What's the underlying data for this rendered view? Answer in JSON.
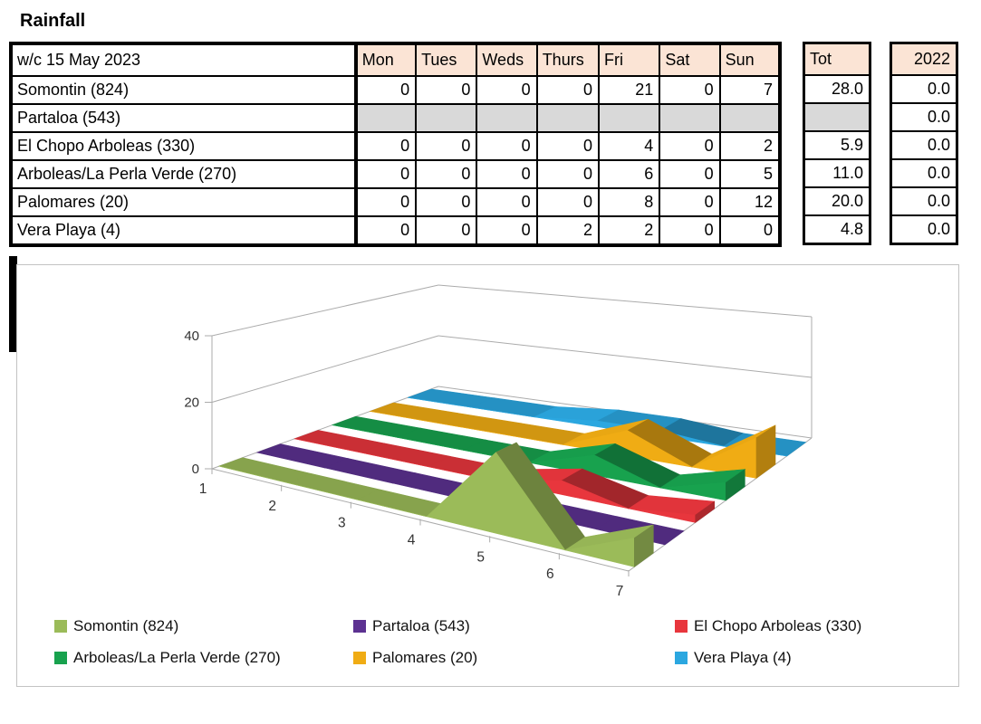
{
  "title": "Rainfall",
  "table": {
    "corner_label": "w/c 15 May 2023",
    "day_headers": [
      "Mon",
      "Tues",
      "Weds",
      "Thurs",
      "Fri",
      "Sat",
      "Sun"
    ],
    "tot_header": "Tot",
    "year_header": "2022",
    "rows": [
      {
        "label": "Somontin (824)",
        "days": [
          "0",
          "0",
          "0",
          "0",
          "21",
          "0",
          "7"
        ],
        "tot": "28.0",
        "year": "0.0",
        "missing": false
      },
      {
        "label": "Partaloa (543)",
        "days": [
          "",
          "",
          "",
          "",
          "",
          "",
          ""
        ],
        "tot": "",
        "year": "0.0",
        "missing": true
      },
      {
        "label": "El Chopo Arboleas (330)",
        "days": [
          "0",
          "0",
          "0",
          "0",
          "4",
          "0",
          "2"
        ],
        "tot": "5.9",
        "year": "0.0",
        "missing": false
      },
      {
        "label": "Arboleas/La Perla Verde (270)",
        "days": [
          "0",
          "0",
          "0",
          "0",
          "6",
          "0",
          "5"
        ],
        "tot": "11.0",
        "year": "0.0",
        "missing": false
      },
      {
        "label": "Palomares (20)",
        "days": [
          "0",
          "0",
          "0",
          "0",
          "8",
          "0",
          "12"
        ],
        "tot": "20.0",
        "year": "0.0",
        "missing": false
      },
      {
        "label": "Vera Playa (4)",
        "days": [
          "0",
          "0",
          "0",
          "2",
          "2",
          "0",
          "0"
        ],
        "tot": "4.8",
        "year": "0.0",
        "missing": false
      }
    ],
    "colors": {
      "header_bg": "#FBE4D5",
      "missing_bg": "#D9D9D9",
      "border": "#000000"
    }
  },
  "chart_data": {
    "type": "area",
    "projection": "3d",
    "categories": [
      "1",
      "2",
      "3",
      "4",
      "5",
      "6",
      "7"
    ],
    "value_axis": {
      "min": 0,
      "max": 40,
      "ticks": [
        "0",
        "20",
        "40"
      ]
    },
    "series": [
      {
        "name": "Somontin (824)",
        "color": "#9BBB59",
        "values": [
          0,
          0,
          0,
          0,
          21,
          0,
          7
        ]
      },
      {
        "name": "Partaloa (543)",
        "color": "#5C3191",
        "values": [
          null,
          null,
          null,
          null,
          null,
          null,
          null
        ]
      },
      {
        "name": "El Chopo Arboleas (330)",
        "color": "#E8363D",
        "values": [
          0,
          0,
          0,
          0,
          4,
          0,
          2
        ]
      },
      {
        "name": "Arboleas/La Perla Verde (270)",
        "color": "#18A24E",
        "values": [
          0,
          0,
          0,
          0,
          6,
          0,
          5
        ]
      },
      {
        "name": "Palomares (20)",
        "color": "#F0AC14",
        "values": [
          0,
          0,
          0,
          0,
          8,
          0,
          12
        ]
      },
      {
        "name": "Vera Playa (4)",
        "color": "#2BA7E0",
        "values": [
          0,
          0,
          0,
          2,
          2,
          0,
          0
        ]
      }
    ],
    "legend_position": "bottom",
    "grid_color": "#ABABAB"
  }
}
